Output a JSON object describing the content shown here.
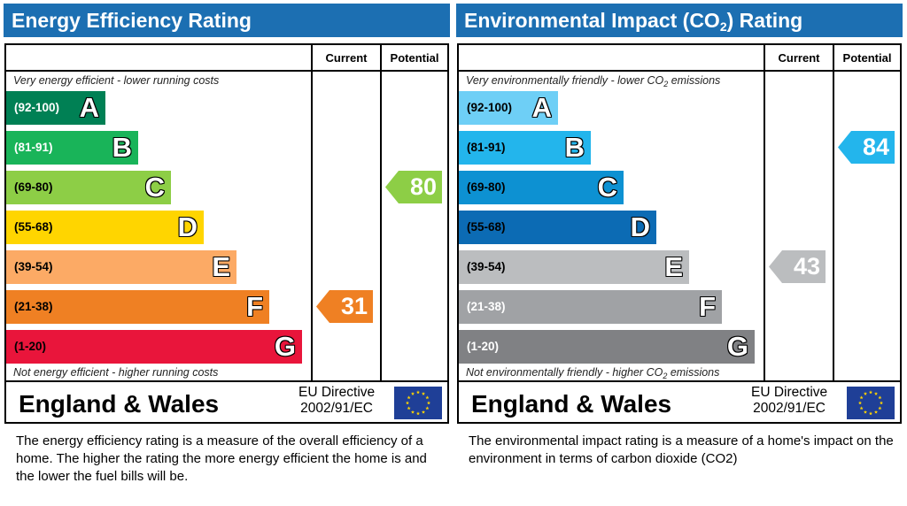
{
  "chart_data": [
    {
      "type": "bar",
      "id": "energy-efficiency",
      "title": "Energy Efficiency Rating",
      "columns": {
        "current": "Current",
        "potential": "Potential"
      },
      "top_note": "Very energy efficient - lower running costs",
      "bottom_note": "Not energy efficient - higher running costs",
      "bands": [
        {
          "range": "(92-100)",
          "letter": "A",
          "color": "#008054",
          "text_color": "#ffffff"
        },
        {
          "range": "(81-91)",
          "letter": "B",
          "color": "#19b459",
          "text_color": "#ffffff"
        },
        {
          "range": "(69-80)",
          "letter": "C",
          "color": "#8dce46",
          "text_color": "#000000"
        },
        {
          "range": "(55-68)",
          "letter": "D",
          "color": "#ffd500",
          "text_color": "#000000"
        },
        {
          "range": "(39-54)",
          "letter": "E",
          "color": "#fcaa65",
          "text_color": "#000000"
        },
        {
          "range": "(21-38)",
          "letter": "F",
          "color": "#ef8023",
          "text_color": "#000000"
        },
        {
          "range": "(1-20)",
          "letter": "G",
          "color": "#e9153b",
          "text_color": "#000000"
        }
      ],
      "current": {
        "value": 31,
        "band": "F",
        "color": "#ef8023"
      },
      "potential": {
        "value": 80,
        "band": "C",
        "color": "#8dce46"
      },
      "region": "England & Wales",
      "directive_line1": "EU Directive",
      "directive_line2": "2002/91/EC",
      "description": "The energy efficiency rating is a measure of the overall efficiency of a home.  The higher the rating the more energy efficient the home is and the lower the fuel bills will be."
    },
    {
      "type": "bar",
      "id": "environmental-impact",
      "title_pre": "Environmental Impact (CO",
      "title_sub": "2",
      "title_post": ") Rating",
      "columns": {
        "current": "Current",
        "potential": "Potential"
      },
      "top_note_pre": "Very environmentally friendly - lower CO",
      "top_note_sub": "2",
      "top_note_post": " emissions",
      "bottom_note_pre": "Not environmentally friendly - higher CO",
      "bottom_note_sub": "2",
      "bottom_note_post": " emissions",
      "bands": [
        {
          "range": "(92-100)",
          "letter": "A",
          "color": "#6ecff6",
          "text_color": "#000000"
        },
        {
          "range": "(81-91)",
          "letter": "B",
          "color": "#23b5ec",
          "text_color": "#000000"
        },
        {
          "range": "(69-80)",
          "letter": "C",
          "color": "#0d91d2",
          "text_color": "#000000"
        },
        {
          "range": "(55-68)",
          "letter": "D",
          "color": "#0c6bb4",
          "text_color": "#000000"
        },
        {
          "range": "(39-54)",
          "letter": "E",
          "color": "#bbbdbf",
          "text_color": "#000000"
        },
        {
          "range": "(21-38)",
          "letter": "F",
          "color": "#a0a2a5",
          "text_color": "#ffffff"
        },
        {
          "range": "(1-20)",
          "letter": "G",
          "color": "#808184",
          "text_color": "#ffffff"
        }
      ],
      "current": {
        "value": 43,
        "band": "E",
        "color": "#bbbdbf"
      },
      "potential": {
        "value": 84,
        "band": "B",
        "color": "#23b5ec"
      },
      "region": "England & Wales",
      "directive_line1": "EU Directive",
      "directive_line2": "2002/91/EC",
      "description": "The environmental impact rating is a measure of a home's impact on the environment in terms of carbon dioxide (CO2)"
    }
  ],
  "eu_flag": {
    "icon": "eu-flag-icon",
    "background": "#1f3f97",
    "star_color": "#ffd500"
  }
}
